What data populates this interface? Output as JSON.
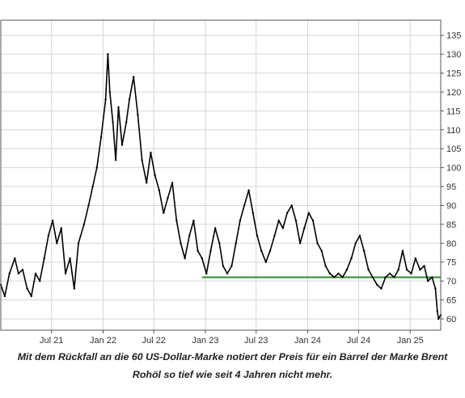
{
  "caption": {
    "line1": "Mit dem Rückfall an die 60 US-Dollar-Marke notiert der Preis für ein Barrel der Marke Brent",
    "line2": "Rohöl so tief wie seit 4 Jahren nicht mehr."
  },
  "colors": {
    "price_line": "#000000",
    "support_line": "#2e8b2e",
    "grid": "#d6d6d6",
    "axis": "#555555"
  },
  "chart_data": {
    "type": "line",
    "title": "",
    "xlabel": "",
    "ylabel": "",
    "ylim": [
      57,
      139
    ],
    "yticks": [
      60,
      65,
      70,
      75,
      80,
      85,
      90,
      95,
      100,
      105,
      110,
      115,
      120,
      125,
      130,
      135
    ],
    "y_axis_side": "right",
    "grid": true,
    "x_start": "2021-01-01",
    "x_end": "2025-04-20",
    "xticks": [
      {
        "label": "Jul 21",
        "date": "2021-07-01"
      },
      {
        "label": "Jan 22",
        "date": "2022-01-01"
      },
      {
        "label": "Jul 22",
        "date": "2022-07-01"
      },
      {
        "label": "Jan 23",
        "date": "2023-01-01"
      },
      {
        "label": "Jul 23",
        "date": "2023-07-01"
      },
      {
        "label": "Jan 24",
        "date": "2024-01-01"
      },
      {
        "label": "Jul 24",
        "date": "2024-07-01"
      },
      {
        "label": "Jan 25",
        "date": "2025-01-01"
      }
    ],
    "series": [
      {
        "name": "",
        "points": [
          [
            "2021-01-01",
            69
          ],
          [
            "2021-01-15",
            66
          ],
          [
            "2021-02-01",
            72
          ],
          [
            "2021-02-20",
            76
          ],
          [
            "2021-03-05",
            72
          ],
          [
            "2021-03-20",
            73
          ],
          [
            "2021-04-05",
            68
          ],
          [
            "2021-04-20",
            66
          ],
          [
            "2021-05-05",
            72
          ],
          [
            "2021-05-20",
            70
          ],
          [
            "2021-06-05",
            76
          ],
          [
            "2021-06-20",
            82
          ],
          [
            "2021-07-05",
            86
          ],
          [
            "2021-07-20",
            80
          ],
          [
            "2021-08-05",
            84
          ],
          [
            "2021-08-20",
            72
          ],
          [
            "2021-09-05",
            76
          ],
          [
            "2021-09-20",
            68
          ],
          [
            "2021-10-05",
            80
          ],
          [
            "2021-10-25",
            85
          ],
          [
            "2021-11-10",
            90
          ],
          [
            "2021-11-25",
            95
          ],
          [
            "2021-12-10",
            100
          ],
          [
            "2021-12-25",
            108
          ],
          [
            "2022-01-10",
            118
          ],
          [
            "2022-01-18",
            130
          ],
          [
            "2022-01-25",
            120
          ],
          [
            "2022-02-05",
            112
          ],
          [
            "2022-02-15",
            102
          ],
          [
            "2022-02-25",
            116
          ],
          [
            "2022-03-10",
            106
          ],
          [
            "2022-03-25",
            112
          ],
          [
            "2022-04-05",
            118
          ],
          [
            "2022-04-20",
            124
          ],
          [
            "2022-05-05",
            114
          ],
          [
            "2022-05-20",
            102
          ],
          [
            "2022-06-05",
            96
          ],
          [
            "2022-06-20",
            104
          ],
          [
            "2022-07-05",
            98
          ],
          [
            "2022-07-20",
            94
          ],
          [
            "2022-08-05",
            88
          ],
          [
            "2022-08-20",
            92
          ],
          [
            "2022-09-05",
            96
          ],
          [
            "2022-09-20",
            86
          ],
          [
            "2022-10-05",
            80
          ],
          [
            "2022-10-20",
            76
          ],
          [
            "2022-11-05",
            82
          ],
          [
            "2022-11-20",
            86
          ],
          [
            "2022-12-05",
            78
          ],
          [
            "2022-12-20",
            76
          ],
          [
            "2023-01-05",
            72
          ],
          [
            "2023-01-20",
            78
          ],
          [
            "2023-02-05",
            84
          ],
          [
            "2023-02-20",
            80
          ],
          [
            "2023-03-05",
            74
          ],
          [
            "2023-03-20",
            72
          ],
          [
            "2023-04-05",
            74
          ],
          [
            "2023-04-20",
            80
          ],
          [
            "2023-05-05",
            86
          ],
          [
            "2023-05-20",
            90
          ],
          [
            "2023-06-05",
            94
          ],
          [
            "2023-06-20",
            88
          ],
          [
            "2023-07-05",
            82
          ],
          [
            "2023-07-20",
            78
          ],
          [
            "2023-08-05",
            75
          ],
          [
            "2023-08-20",
            78
          ],
          [
            "2023-09-05",
            82
          ],
          [
            "2023-09-20",
            86
          ],
          [
            "2023-10-05",
            84
          ],
          [
            "2023-10-20",
            88
          ],
          [
            "2023-11-05",
            90
          ],
          [
            "2023-11-20",
            86
          ],
          [
            "2023-12-05",
            80
          ],
          [
            "2023-12-20",
            84
          ],
          [
            "2024-01-05",
            88
          ],
          [
            "2024-01-20",
            86
          ],
          [
            "2024-02-05",
            80
          ],
          [
            "2024-02-20",
            78
          ],
          [
            "2024-03-05",
            74
          ],
          [
            "2024-03-20",
            72
          ],
          [
            "2024-04-05",
            71
          ],
          [
            "2024-04-20",
            72
          ],
          [
            "2024-05-05",
            71
          ],
          [
            "2024-05-20",
            73
          ],
          [
            "2024-06-05",
            76
          ],
          [
            "2024-06-20",
            80
          ],
          [
            "2024-07-05",
            82
          ],
          [
            "2024-07-20",
            78
          ],
          [
            "2024-08-05",
            73
          ],
          [
            "2024-08-20",
            71
          ],
          [
            "2024-09-05",
            69
          ],
          [
            "2024-09-20",
            68
          ],
          [
            "2024-10-05",
            71
          ],
          [
            "2024-10-20",
            72
          ],
          [
            "2024-11-05",
            71
          ],
          [
            "2024-11-20",
            73
          ],
          [
            "2024-12-05",
            78
          ],
          [
            "2024-12-20",
            73
          ],
          [
            "2025-01-05",
            72
          ],
          [
            "2025-01-20",
            76
          ],
          [
            "2025-02-05",
            73
          ],
          [
            "2025-02-20",
            74
          ],
          [
            "2025-03-05",
            70
          ],
          [
            "2025-03-20",
            71
          ],
          [
            "2025-04-01",
            68
          ],
          [
            "2025-04-08",
            62
          ],
          [
            "2025-04-12",
            60
          ],
          [
            "2025-04-20",
            61
          ]
        ]
      }
    ],
    "annotations": [
      {
        "type": "horizontal_line",
        "y": 71,
        "x_from": "2022-12-20",
        "x_to": "2025-04-20",
        "color": "#2e8b2e"
      }
    ]
  }
}
